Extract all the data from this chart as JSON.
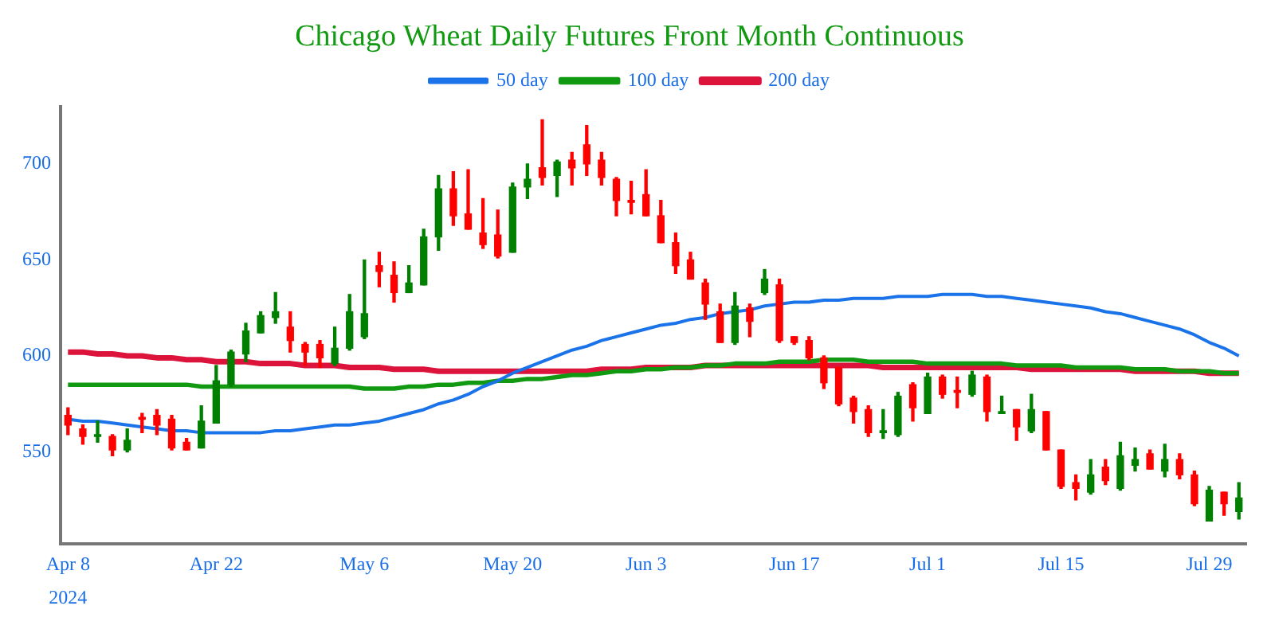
{
  "chart_data": {
    "type": "candlestick",
    "title": "Chicago Wheat Daily Futures Front Month Continuous",
    "categories": [
      "Apr 8",
      null,
      null,
      null,
      null,
      null,
      null,
      null,
      null,
      null,
      "Apr 22",
      null,
      null,
      null,
      null,
      null,
      null,
      null,
      null,
      null,
      "May 6",
      null,
      null,
      null,
      null,
      null,
      null,
      null,
      null,
      null,
      "May 20",
      null,
      null,
      null,
      null,
      null,
      null,
      null,
      null,
      "Jun 3",
      null,
      null,
      null,
      null,
      null,
      null,
      null,
      null,
      null,
      "Jun 17",
      null,
      null,
      null,
      null,
      null,
      null,
      null,
      null,
      "Jul 1",
      null,
      null,
      null,
      null,
      null,
      null,
      null,
      null,
      "Jul 15",
      null,
      null,
      null,
      null,
      null,
      null,
      null,
      null,
      null,
      "Jul 29",
      null,
      null
    ],
    "ohlc": [
      [
        569,
        573,
        559,
        564
      ],
      [
        562,
        564,
        554,
        558
      ],
      [
        558,
        566,
        555,
        559
      ],
      [
        558,
        559,
        548,
        551
      ],
      [
        551,
        562,
        550,
        556
      ],
      [
        568,
        570,
        560,
        567
      ],
      [
        569,
        572,
        559,
        564
      ],
      [
        567,
        569,
        551,
        552
      ],
      [
        555,
        557,
        551,
        551
      ],
      [
        552,
        574,
        552,
        566
      ],
      [
        565,
        595,
        565,
        587
      ],
      [
        585,
        603,
        584,
        602
      ],
      [
        601,
        617,
        597,
        613
      ],
      [
        612,
        623,
        612,
        621
      ],
      [
        620,
        633,
        617,
        623
      ],
      [
        615,
        623,
        602,
        608
      ],
      [
        606,
        607,
        595,
        602
      ],
      [
        606,
        608,
        594,
        599
      ],
      [
        596,
        615,
        595,
        604
      ],
      [
        604,
        632,
        603,
        623
      ],
      [
        610,
        650,
        609,
        622
      ],
      [
        647,
        654,
        636,
        644
      ],
      [
        642,
        649,
        628,
        633
      ],
      [
        633,
        647,
        633,
        638
      ],
      [
        637,
        666,
        637,
        662
      ],
      [
        662,
        694,
        655,
        687
      ],
      [
        687,
        696,
        668,
        673
      ],
      [
        674,
        697,
        666,
        666
      ],
      [
        664,
        682,
        656,
        658
      ],
      [
        663,
        676,
        651,
        652
      ],
      [
        654,
        690,
        654,
        688
      ],
      [
        688,
        700,
        682,
        692
      ],
      [
        698,
        723,
        689,
        693
      ],
      [
        694,
        702,
        683,
        701
      ],
      [
        702,
        706,
        689,
        698
      ],
      [
        710,
        720,
        694,
        700
      ],
      [
        702,
        706,
        689,
        693
      ],
      [
        692,
        693,
        673,
        681
      ],
      [
        681,
        691,
        674,
        680
      ],
      [
        684,
        697,
        673,
        673
      ],
      [
        673,
        681,
        659,
        659
      ],
      [
        659,
        664,
        643,
        647
      ],
      [
        650,
        654,
        640,
        640
      ],
      [
        638,
        640,
        619,
        627
      ],
      [
        623,
        627,
        607,
        607
      ],
      [
        607,
        633,
        606,
        626
      ],
      [
        625,
        627,
        610,
        618
      ],
      [
        633,
        645,
        632,
        640
      ],
      [
        637,
        640,
        607,
        608
      ],
      [
        610,
        610,
        606,
        607
      ],
      [
        608,
        610,
        598,
        599
      ],
      [
        599,
        600,
        583,
        586
      ],
      [
        594,
        594,
        574,
        575
      ],
      [
        578,
        579,
        565,
        571
      ],
      [
        572,
        574,
        558,
        560
      ],
      [
        560,
        572,
        557,
        561
      ],
      [
        559,
        581,
        558,
        579
      ],
      [
        585,
        586,
        566,
        573
      ],
      [
        570,
        591,
        570,
        589
      ],
      [
        589,
        590,
        578,
        580
      ],
      [
        582,
        589,
        573,
        581
      ],
      [
        580,
        592,
        579,
        590
      ],
      [
        589,
        590,
        566,
        571
      ],
      [
        570,
        579,
        570,
        571
      ],
      [
        572,
        572,
        556,
        563
      ],
      [
        561,
        580,
        560,
        572
      ],
      [
        571,
        571,
        551,
        551
      ],
      [
        551,
        551,
        531,
        532
      ],
      [
        534,
        538,
        525,
        531
      ],
      [
        529,
        546,
        528,
        538
      ],
      [
        542,
        546,
        533,
        535
      ],
      [
        531,
        555,
        530,
        548
      ],
      [
        543,
        552,
        540,
        546
      ],
      [
        549,
        551,
        541,
        541
      ],
      [
        540,
        554,
        537,
        546
      ],
      [
        546,
        549,
        536,
        538
      ],
      [
        538,
        540,
        522,
        523
      ],
      [
        514,
        532,
        514,
        530
      ],
      [
        529,
        529,
        517,
        523
      ],
      [
        519,
        534,
        515,
        526
      ]
    ],
    "colors": [
      "#ff0000",
      "#ff0000",
      "#008000",
      "#ff0000",
      "#008000",
      "#ff0000",
      "#ff0000",
      "#ff0000",
      "#ff0000",
      "#008000",
      "#008000",
      "#008000",
      "#008000",
      "#008000",
      "#008000",
      "#ff0000",
      "#ff0000",
      "#ff0000",
      "#008000",
      "#008000",
      "#008000",
      "#ff0000",
      "#ff0000",
      "#008000",
      "#008000",
      "#008000",
      "#ff0000",
      "#ff0000",
      "#ff0000",
      "#ff0000",
      "#008000",
      "#008000",
      "#ff0000",
      "#008000",
      "#ff0000",
      "#ff0000",
      "#ff0000",
      "#ff0000",
      "#ff0000",
      "#ff0000",
      "#ff0000",
      "#ff0000",
      "#ff0000",
      "#ff0000",
      "#ff0000",
      "#008000",
      "#ff0000",
      "#008000",
      "#ff0000",
      "#ff0000",
      "#ff0000",
      "#ff0000",
      "#ff0000",
      "#ff0000",
      "#ff0000",
      "#008000",
      "#008000",
      "#ff0000",
      "#008000",
      "#ff0000",
      "#ff0000",
      "#008000",
      "#ff0000",
      "#008000",
      "#ff0000",
      "#008000",
      "#ff0000",
      "#ff0000",
      "#ff0000",
      "#008000",
      "#ff0000",
      "#008000",
      "#008000",
      "#ff0000",
      "#008000",
      "#ff0000",
      "#ff0000",
      "#008000",
      "#ff0000",
      "#008000"
    ],
    "series": [
      {
        "name": "50 day",
        "type": "line",
        "color": "#1a73e8",
        "values": [
          567,
          566,
          566,
          565,
          564,
          563,
          562,
          561,
          561,
          560,
          560,
          560,
          560,
          560,
          561,
          561,
          562,
          563,
          564,
          564,
          565,
          566,
          568,
          570,
          572,
          575,
          577,
          580,
          584,
          587,
          591,
          594,
          597,
          600,
          603,
          605,
          608,
          610,
          612,
          614,
          616,
          617,
          619,
          620,
          622,
          623,
          624,
          626,
          627,
          628,
          628,
          629,
          629,
          630,
          630,
          630,
          631,
          631,
          631,
          632,
          632,
          632,
          631,
          631,
          630,
          629,
          628,
          627,
          626,
          625,
          623,
          622,
          620,
          618,
          616,
          614,
          611,
          607,
          604,
          600
        ]
      },
      {
        "name": "100 day",
        "type": "line",
        "color": "#119911",
        "values": [
          585,
          585,
          585,
          585,
          585,
          585,
          585,
          585,
          585,
          584,
          584,
          584,
          584,
          584,
          584,
          584,
          584,
          584,
          584,
          584,
          583,
          583,
          583,
          584,
          584,
          585,
          585,
          586,
          586,
          587,
          587,
          588,
          588,
          589,
          590,
          590,
          591,
          592,
          592,
          593,
          593,
          594,
          594,
          595,
          595,
          596,
          596,
          596,
          597,
          597,
          597,
          598,
          598,
          598,
          597,
          597,
          597,
          597,
          596,
          596,
          596,
          596,
          596,
          596,
          595,
          595,
          595,
          595,
          594,
          594,
          594,
          594,
          593,
          593,
          593,
          592,
          592,
          592,
          591,
          591
        ]
      },
      {
        "name": "200 day",
        "type": "line",
        "color": "#dc143c",
        "values": [
          602,
          602,
          601,
          601,
          600,
          600,
          599,
          599,
          598,
          598,
          597,
          597,
          597,
          596,
          596,
          596,
          595,
          595,
          595,
          594,
          594,
          594,
          593,
          593,
          593,
          592,
          592,
          592,
          592,
          592,
          592,
          592,
          592,
          592,
          592,
          592,
          593,
          593,
          593,
          594,
          594,
          594,
          594,
          595,
          595,
          595,
          595,
          595,
          595,
          595,
          595,
          595,
          595,
          595,
          595,
          594,
          594,
          594,
          594,
          594,
          594,
          594,
          594,
          594,
          594,
          593,
          593,
          593,
          593,
          593,
          593,
          593,
          592,
          592,
          592,
          592,
          592,
          591,
          591,
          591
        ]
      }
    ],
    "ylim": [
      502,
      730
    ],
    "yticks": [
      550,
      600,
      650,
      700
    ],
    "grid": false,
    "legend": "top",
    "annotations": [
      "2024"
    ]
  }
}
